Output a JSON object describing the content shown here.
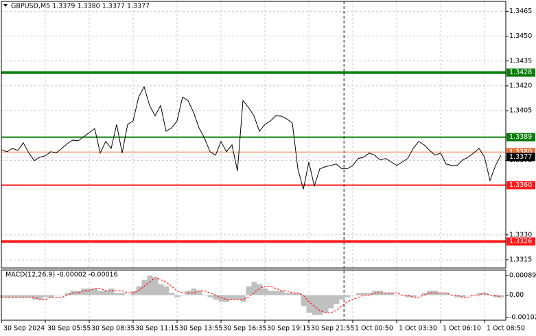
{
  "chart_data": [
    {
      "type": "line",
      "title": "GBPUSD,M5  1.3379 1.3380 1.3377 1.3377",
      "color": "#000000",
      "values": [
        1.33814,
        1.33802,
        1.33822,
        1.3381,
        1.33856,
        1.33794,
        1.33748,
        1.33769,
        1.33777,
        1.33802,
        1.33794,
        1.33822,
        1.33851,
        1.33872,
        1.33868,
        1.33893,
        1.33917,
        1.33942,
        1.33794,
        1.33864,
        1.33822,
        1.33967,
        1.33794,
        1.33967,
        1.33988,
        1.34132,
        1.34194,
        1.34081,
        1.34019,
        1.34081,
        1.33926,
        1.33946,
        1.33988,
        1.34132,
        1.34111,
        1.3404,
        1.33946,
        1.33884,
        1.33802,
        1.33781,
        1.33864,
        1.33802,
        1.33843,
        1.33686,
        1.34111,
        1.3407,
        1.34019,
        1.33926,
        1.33967,
        1.33988,
        1.34019,
        1.34017,
        1.34,
        1.33975,
        1.33699,
        1.33575,
        1.3374,
        1.33595,
        1.33699,
        1.33711,
        1.33719,
        1.33728,
        1.33699,
        1.33699,
        1.33719,
        1.33761,
        1.33769,
        1.33794,
        1.33781,
        1.33752,
        1.33761,
        1.3374,
        1.33719,
        1.3374,
        1.33761,
        1.33822,
        1.33864,
        1.33843,
        1.3381,
        1.33781,
        1.33794,
        1.33728,
        1.33719,
        1.33719,
        1.33752,
        1.33769,
        1.33794,
        1.33822,
        1.33769,
        1.33628,
        1.33719,
        1.33781
      ],
      "ylim": [
        1.331,
        1.3471
      ],
      "yticks": [
        1.3465,
        {
          "value": 1.345,
          "label": "1.3450"
        },
        1.3435,
        {
          "value": 1.342,
          "label": "1.3420"
        },
        1.3405,
        1.3375,
        {
          "value": 1.333,
          "label": "1.3330"
        },
        1.3315
      ],
      "xticks": [
        {
          "value": 0,
          "label": "30 Sep 2024"
        },
        {
          "value": 8,
          "label": "30 Sep 05:55"
        },
        {
          "value": 16,
          "label": "30 Sep 08:35"
        },
        {
          "value": 24,
          "label": "30 Sep 11:15"
        },
        {
          "value": 32,
          "label": "30 Sep 13:55"
        },
        {
          "value": 40,
          "label": "30 Sep 16:35"
        },
        {
          "value": 48,
          "label": "30 Sep 19:15"
        },
        {
          "value": 56,
          "label": "30 Sep 21:55"
        },
        {
          "value": 64,
          "label": "1 Oct 00:50"
        },
        {
          "value": 72,
          "label": "1 Oct 03:30"
        },
        {
          "value": 80,
          "label": "1 Oct 06:10"
        },
        {
          "value": 88,
          "label": "1 Oct 08:50"
        }
      ],
      "levels": [
        {
          "value": 1.3428,
          "color": "#0a7d0a"
        },
        {
          "value": 1.3389,
          "color": "#0a7d0a"
        },
        {
          "value": 1.338,
          "label": "1.3380",
          "color": "#e8733a"
        },
        {
          "value": 1.336,
          "label": "1.3360",
          "color": "#ff1a1a"
        },
        {
          "value": 1.3326,
          "color": "#ff1a1a"
        }
      ],
      "last": {
        "value": 1.3377,
        "color": "#000000"
      },
      "day_break": 62.4,
      "grid": true
    },
    {
      "type": "macd",
      "title": "MACD(12,26,9) -0.00002 -0.00016",
      "color": "#c0c0c0",
      "values": [
        -0.0001,
        -0.0001,
        -0.0001,
        -0.0001,
        -0.0001,
        -0.0001,
        -0.0002,
        -0.0002,
        -0.0001,
        -0.0001,
        0,
        0,
        0.0001,
        0.0002,
        0.0002,
        0.0003,
        0.0003,
        0.0003,
        0.0002,
        0.0002,
        0.0003,
        0.0001,
        0.0001,
        0,
        0.0002,
        0.0004,
        0.0007,
        0.0009,
        0.0008,
        0.0005,
        0.0004,
        0.0001,
        -0.0001,
        0,
        0.0002,
        0.0003,
        0.0002,
        0,
        -0.0001,
        -0.0002,
        -0.0003,
        -0.0003,
        -0.0002,
        -0.0002,
        -0.0003,
        0.0004,
        0.0006,
        0.0005,
        0.0003,
        0.0002,
        0.0002,
        0.0002,
        0.0001,
        0.0001,
        0.0001,
        -0.0005,
        -0.0008,
        -0.0009,
        -0.0009,
        -0.0008,
        -0.0006,
        -0.0004,
        -0.0002,
        -0.0001,
        0,
        0.0001,
        0.0001,
        0.0001,
        0.0002,
        0.0002,
        0.0001,
        0.0001,
        0,
        0,
        -0.0001,
        -0.0001,
        0,
        0.0001,
        0.0002,
        0.0002,
        0.0001,
        0.0001,
        0,
        -0.0001,
        -0.0001,
        0,
        0,
        0.0001,
        0.0001,
        0,
        -0.0001,
        -0.0001
      ],
      "signal_color": "#ff0000",
      "signal_values": [
        -0.0001,
        -0.0001,
        -0.0001,
        -0.0001,
        -0.0001,
        -0.0001,
        -0.0001,
        -0.0002,
        -0.0002,
        -0.0001,
        -0.0001,
        -0.0001,
        0,
        0.0001,
        0.0001,
        0.0002,
        0.0002,
        0.0003,
        0.0003,
        0.0002,
        0.0002,
        0.0002,
        0.0002,
        0.0001,
        0.0001,
        0.0002,
        0.0004,
        0.0006,
        0.0008,
        0.0007,
        0.0006,
        0.0004,
        0.0002,
        0.0001,
        0.0001,
        0.0001,
        0.0002,
        0.0002,
        0.0001,
        0,
        -0.0001,
        -0.0002,
        -0.0002,
        -0.0002,
        -0.0002,
        -0.0001,
        0.0001,
        0.0003,
        0.0004,
        0.0004,
        0.0003,
        0.0002,
        0.0002,
        0.0001,
        0.0001,
        0,
        -0.0003,
        -0.0005,
        -0.0007,
        -0.0008,
        -0.0008,
        -0.0007,
        -0.0005,
        -0.0003,
        -0.0002,
        -0.0001,
        0,
        0,
        0.0001,
        0.0001,
        0.0001,
        0.0001,
        0.0001,
        0,
        0,
        -0.0001,
        -0.0001,
        0,
        0.0001,
        0.0001,
        0.0001,
        0.0001,
        0,
        0,
        -0.0001,
        -0.0001,
        0,
        0,
        0.0001,
        0,
        0,
        -0.0001
      ],
      "ylim": [
        -0.00114,
        0.00114
      ],
      "yticks": [
        0.00089,
        {
          "value": 0,
          "label": "0.00"
        },
        -0.00102
      ]
    }
  ]
}
